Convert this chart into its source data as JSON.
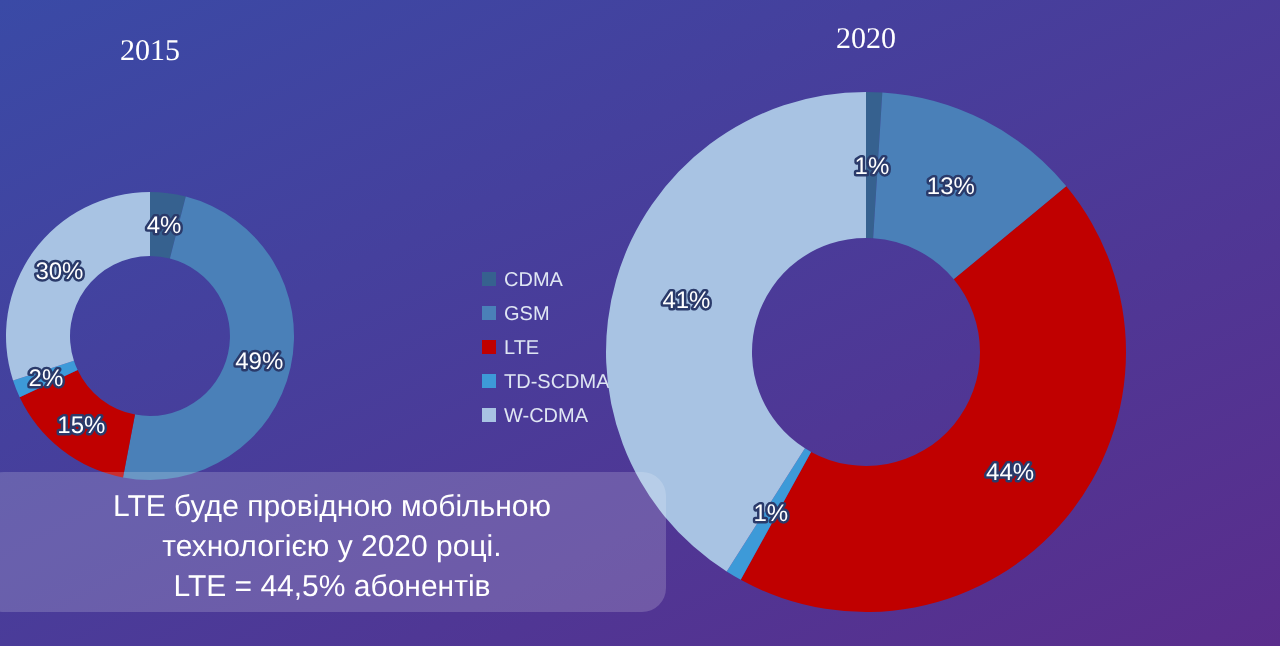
{
  "chart_data": [
    {
      "type": "donut",
      "title": "2015",
      "categories": [
        "CDMA",
        "GSM",
        "LTE",
        "TD-SCDMA",
        "W-CDMA"
      ],
      "values": [
        4,
        49,
        15,
        2,
        30
      ],
      "value_labels": [
        "4%",
        "49%",
        "15%",
        "2%",
        "30%"
      ],
      "colors": [
        "#36618f",
        "#4a80b8",
        "#c00000",
        "#3d9ad8",
        "#a8c3e3"
      ],
      "legend": "right"
    },
    {
      "type": "donut",
      "title": "2020",
      "categories": [
        null,
        null,
        null,
        null,
        null
      ],
      "values": [
        1,
        13,
        44,
        1,
        41
      ],
      "value_labels": [
        "1%",
        "13%",
        "44%",
        "1%",
        "41%"
      ],
      "colors": [
        "#36618f",
        "#4a80b8",
        "#c00000",
        "#3d9ad8",
        "#a8c3e3"
      ],
      "annotations": [
        "LTE буде провідною мобільною технологією у 2020 році.",
        "LTE = 44,5% абонентів"
      ]
    }
  ]
}
